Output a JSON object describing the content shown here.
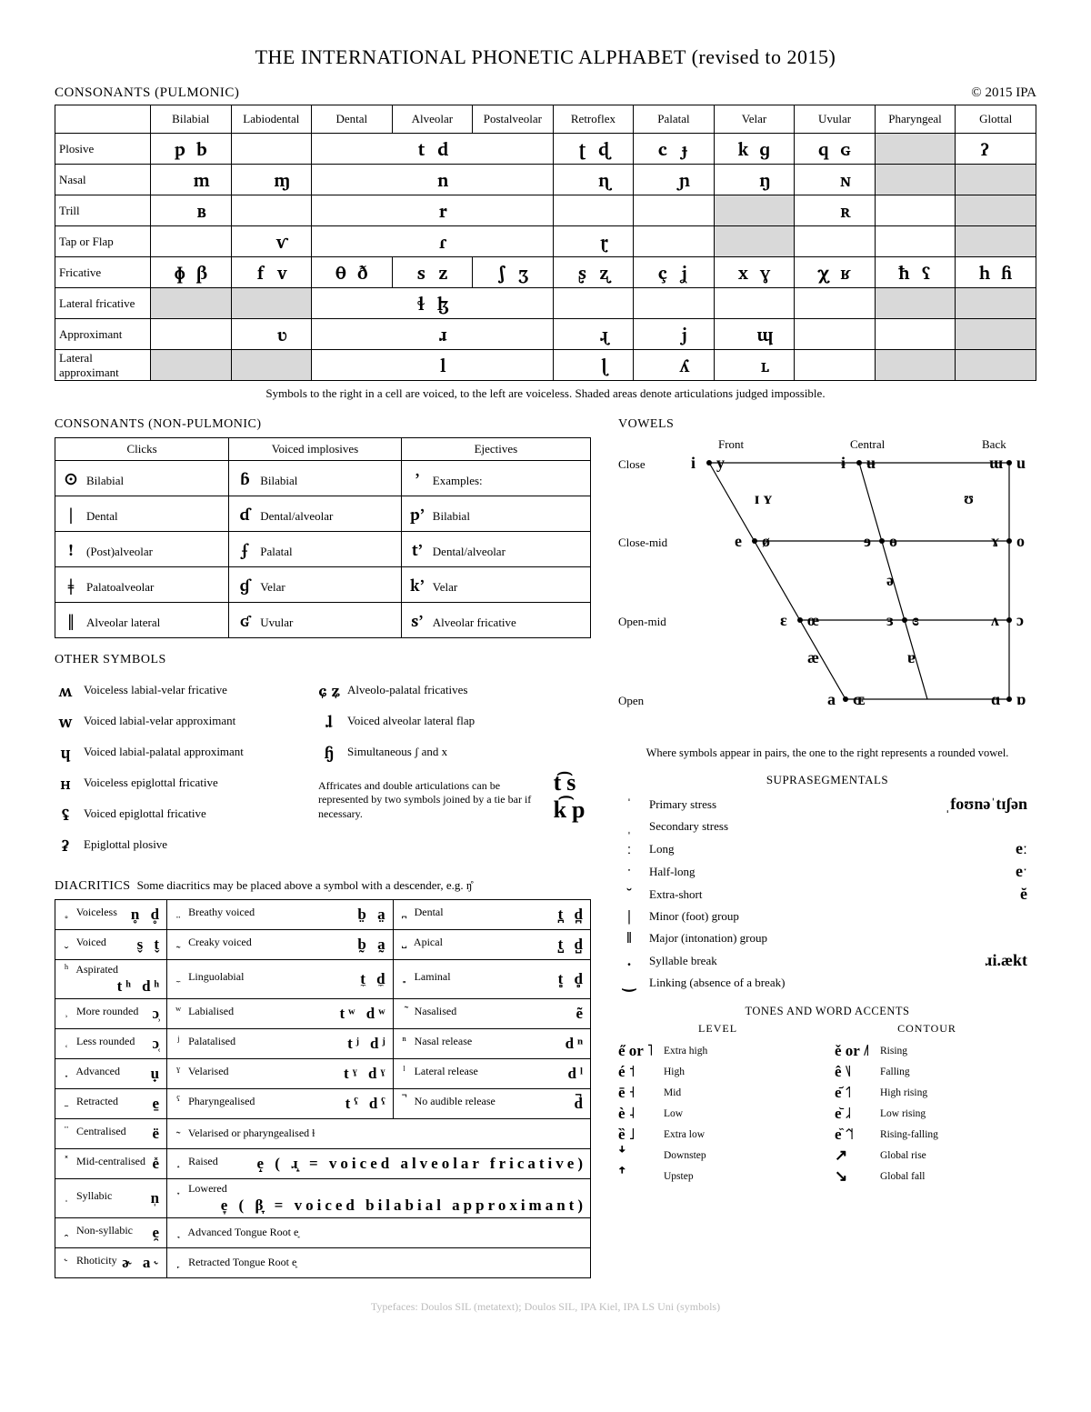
{
  "title": "THE INTERNATIONAL PHONETIC ALPHABET (revised to 2015)",
  "copyright": "© 2015 IPA",
  "footer": "Typefaces: Doulos SIL (metatext); Doulos SIL, IPA Kiel, IPA LS Uni (symbols)",
  "pulmonic": {
    "heading": "CONSONANTS (PULMONIC)",
    "caption": "Symbols to the right in a cell are voiced, to the left are voiceless. Shaded areas denote articulations judged impossible.",
    "columns": [
      "Bilabial",
      "Labiodental",
      "Dental",
      "Alveolar",
      "Postalveolar",
      "Retroflex",
      "Palatal",
      "Velar",
      "Uvular",
      "Pharyngeal",
      "Glottal"
    ],
    "rows": [
      {
        "label": "Plosive",
        "cells": [
          [
            "p",
            "b"
          ],
          [
            "",
            ""
          ],
          [
            "",
            ""
          ],
          [
            "t",
            "d"
          ],
          [
            "",
            ""
          ],
          [
            "ʈ",
            "ɖ"
          ],
          [
            "c",
            "ɟ"
          ],
          [
            "k",
            "ɡ"
          ],
          [
            "q",
            "ɢ"
          ],
          [
            "shadedL",
            ""
          ],
          [
            "ʔ",
            ""
          ]
        ],
        "merge": [
          {
            "from": 2,
            "to": 4,
            "v": [
              "t",
              "d"
            ]
          }
        ],
        "partialShade": [
          {
            "col": 9,
            "side": "right"
          },
          {
            "col": 10,
            "side": "right"
          }
        ]
      },
      {
        "label": "Nasal",
        "cells": [
          [
            "",
            "m"
          ],
          [
            "",
            "ɱ"
          ],
          [
            "",
            ""
          ],
          [
            "",
            "n"
          ],
          [
            "",
            ""
          ],
          [
            "",
            "ɳ"
          ],
          [
            "",
            "ɲ"
          ],
          [
            "",
            "ŋ"
          ],
          [
            "",
            "ɴ"
          ],
          [
            "shaded"
          ],
          [
            "shaded"
          ]
        ],
        "merge": [
          {
            "from": 2,
            "to": 4,
            "v": [
              "",
              "n"
            ]
          }
        ]
      },
      {
        "label": "Trill",
        "cells": [
          [
            "",
            "ʙ"
          ],
          [
            "",
            ""
          ],
          [
            "",
            ""
          ],
          [
            "",
            "r"
          ],
          [
            "",
            ""
          ],
          [
            "",
            ""
          ],
          [
            "",
            ""
          ],
          [
            "shaded"
          ],
          [
            "",
            "ʀ"
          ],
          [
            "",
            ""
          ],
          [
            "shaded"
          ]
        ],
        "merge": [
          {
            "from": 2,
            "to": 4,
            "v": [
              "",
              "r"
            ]
          }
        ]
      },
      {
        "label": "Tap or Flap",
        "cells": [
          [
            "",
            ""
          ],
          [
            "",
            "ⱱ"
          ],
          [
            "",
            ""
          ],
          [
            "",
            "ɾ"
          ],
          [
            "",
            ""
          ],
          [
            "",
            "ɽ"
          ],
          [
            "",
            ""
          ],
          [
            "shaded"
          ],
          [
            "",
            ""
          ],
          [
            "",
            ""
          ],
          [
            "shaded"
          ]
        ],
        "merge": [
          {
            "from": 2,
            "to": 4,
            "v": [
              "",
              "ɾ"
            ]
          }
        ]
      },
      {
        "label": "Fricative",
        "cells": [
          [
            "ɸ",
            "β"
          ],
          [
            "f",
            "v"
          ],
          [
            "θ",
            "ð"
          ],
          [
            "s",
            "z"
          ],
          [
            "ʃ",
            "ʒ"
          ],
          [
            "ʂ",
            "ʐ"
          ],
          [
            "ç",
            "ʝ"
          ],
          [
            "x",
            "ɣ"
          ],
          [
            "χ",
            "ʁ"
          ],
          [
            "ħ",
            "ʕ"
          ],
          [
            "h",
            "ɦ"
          ]
        ]
      },
      {
        "label": "Lateral fricative",
        "cells": [
          [
            "shaded"
          ],
          [
            "shaded"
          ],
          [
            "",
            ""
          ],
          [
            "ɬ",
            "ɮ"
          ],
          [
            "",
            ""
          ],
          [
            "",
            ""
          ],
          [
            "",
            ""
          ],
          [
            "",
            ""
          ],
          [
            "",
            ""
          ],
          [
            "shaded"
          ],
          [
            "shaded"
          ]
        ],
        "merge": [
          {
            "from": 2,
            "to": 4,
            "v": [
              "ɬ",
              "ɮ"
            ]
          }
        ]
      },
      {
        "label": "Approximant",
        "cells": [
          [
            "",
            ""
          ],
          [
            "",
            "ʋ"
          ],
          [
            "",
            ""
          ],
          [
            "",
            "ɹ"
          ],
          [
            "",
            ""
          ],
          [
            "",
            "ɻ"
          ],
          [
            "",
            "j"
          ],
          [
            "",
            "ɰ"
          ],
          [
            "",
            ""
          ],
          [
            "",
            ""
          ],
          [
            "shaded"
          ]
        ],
        "merge": [
          {
            "from": 2,
            "to": 4,
            "v": [
              "",
              "ɹ"
            ]
          }
        ]
      },
      {
        "label": "Lateral approximant",
        "cells": [
          [
            "shaded"
          ],
          [
            "shaded"
          ],
          [
            "",
            ""
          ],
          [
            "",
            "l"
          ],
          [
            "",
            ""
          ],
          [
            "",
            "ɭ"
          ],
          [
            "",
            "ʎ"
          ],
          [
            "",
            "ʟ"
          ],
          [
            "",
            ""
          ],
          [
            "shaded"
          ],
          [
            "shaded"
          ]
        ],
        "merge": [
          {
            "from": 2,
            "to": 4,
            "v": [
              "",
              "l"
            ]
          }
        ]
      }
    ]
  },
  "nonpulmonic": {
    "heading": "CONSONANTS (NON-PULMONIC)",
    "cols": [
      "Clicks",
      "Voiced implosives",
      "Ejectives"
    ],
    "rows": [
      [
        [
          "ʘ",
          "Bilabial"
        ],
        [
          "ɓ",
          "Bilabial"
        ],
        [
          "ʼ",
          "Examples:"
        ]
      ],
      [
        [
          "ǀ",
          "Dental"
        ],
        [
          "ɗ",
          "Dental/alveolar"
        ],
        [
          "pʼ",
          "Bilabial"
        ]
      ],
      [
        [
          "ǃ",
          "(Post)alveolar"
        ],
        [
          "ʄ",
          "Palatal"
        ],
        [
          "tʼ",
          "Dental/alveolar"
        ]
      ],
      [
        [
          "ǂ",
          "Palatoalveolar"
        ],
        [
          "ɠ",
          "Velar"
        ],
        [
          "kʼ",
          "Velar"
        ]
      ],
      [
        [
          "ǁ",
          "Alveolar lateral"
        ],
        [
          "ʛ",
          "Uvular"
        ],
        [
          "sʼ",
          "Alveolar fricative"
        ]
      ]
    ]
  },
  "other": {
    "heading": "OTHER SYMBOLS",
    "left": [
      [
        "ʍ",
        "Voiceless labial-velar fricative"
      ],
      [
        "w",
        "Voiced labial-velar approximant"
      ],
      [
        "ɥ",
        "Voiced labial-palatal approximant"
      ],
      [
        "ʜ",
        "Voiceless epiglottal fricative"
      ],
      [
        "ʢ",
        "Voiced epiglottal fricative"
      ],
      [
        "ʡ",
        "Epiglottal plosive"
      ]
    ],
    "right": [
      [
        "ɕ ʑ",
        "Alveolo-palatal fricatives"
      ],
      [
        "ɺ",
        "Voiced alveolar lateral flap"
      ],
      [
        "ɧ",
        "Simultaneous  ʃ  and  x"
      ]
    ],
    "affricate_note": "Affricates and double articulations can be represented by two symbols joined by a tie bar if necessary.",
    "affricate_examples": "t͡s   k͡p"
  },
  "diacritics": {
    "heading": "DIACRITICS",
    "note": "Some diacritics may be placed above a symbol with a descender, e.g. ŋ̊",
    "rows": [
      [
        [
          "̥",
          "Voiceless",
          "n̥ d̥"
        ],
        [
          "̤",
          "Breathy voiced",
          "b̤ a̤"
        ],
        [
          "̪",
          "Dental",
          "t̪ d̪"
        ]
      ],
      [
        [
          "̬",
          "Voiced",
          "s̬ t̬"
        ],
        [
          "̰",
          "Creaky voiced",
          "b̰ a̰"
        ],
        [
          "̺",
          "Apical",
          "t̺ d̺"
        ]
      ],
      [
        [
          "ʰ",
          "Aspirated",
          "tʰ dʰ"
        ],
        [
          "̼",
          "Linguolabial",
          "t̼ d̼"
        ],
        [
          "̻",
          "Laminal",
          "t̻ d̻"
        ]
      ],
      [
        [
          "̹",
          "More rounded",
          "ɔ̹"
        ],
        [
          "ʷ",
          "Labialised",
          "tʷ dʷ"
        ],
        [
          "̃",
          "Nasalised",
          "ẽ"
        ]
      ],
      [
        [
          "̜",
          "Less rounded",
          "ɔ̜"
        ],
        [
          "ʲ",
          "Palatalised",
          "tʲ dʲ"
        ],
        [
          "ⁿ",
          "Nasal release",
          "dⁿ"
        ]
      ],
      [
        [
          "̟",
          "Advanced",
          "u̟"
        ],
        [
          "ˠ",
          "Velarised",
          "tˠ dˠ"
        ],
        [
          "ˡ",
          "Lateral release",
          "dˡ"
        ]
      ],
      [
        [
          "̠",
          "Retracted",
          "e̠"
        ],
        [
          "ˤ",
          "Pharyngealised",
          "tˤ dˤ"
        ],
        [
          "̚",
          "No audible release",
          "d̚"
        ]
      ],
      [
        [
          "̈",
          "Centralised",
          "ë"
        ],
        [
          "̴",
          "Velarised or pharyngealised          ɫ",
          "span2"
        ]
      ],
      [
        [
          "̽",
          "Mid-centralised",
          "e̽"
        ],
        [
          "̝",
          "Raised",
          "e̝   ( ɹ̝ = voiced alveolar fricative)",
          "span2"
        ]
      ],
      [
        [
          "̩",
          "Syllabic",
          "n̩"
        ],
        [
          "̞",
          "Lowered",
          "e̞   ( β̞ = voiced bilabial approximant)",
          "span2"
        ]
      ],
      [
        [
          "̯",
          "Non-syllabic",
          "e̯"
        ],
        [
          "̘",
          "Advanced Tongue Root   e̘",
          "",
          "span2"
        ]
      ],
      [
        [
          "˞",
          "Rhoticity",
          "ɚ a˞"
        ],
        [
          "̙",
          "Retracted Tongue Root   e̙",
          "",
          "span2"
        ]
      ]
    ]
  },
  "vowels": {
    "heading": "VOWELS",
    "axis_top": [
      "Front",
      "Central",
      "Back"
    ],
    "axis_left": [
      "Close",
      "Close-mid",
      "Open-mid",
      "Open"
    ],
    "note": "Where symbols appear in pairs, the one to the right represents a rounded vowel."
  },
  "supra": {
    "heading": "SUPRASEGMENTALS",
    "rows": [
      [
        "ˈ",
        "Primary stress",
        "ˌfoʊnəˈtɪʃən"
      ],
      [
        "ˌ",
        "Secondary stress",
        ""
      ],
      [
        "ː",
        "Long",
        "eː"
      ],
      [
        "ˑ",
        "Half-long",
        "eˑ"
      ],
      [
        "̆",
        "Extra-short",
        "ĕ"
      ],
      [
        "|",
        "Minor (foot) group",
        ""
      ],
      [
        "‖",
        "Major (intonation) group",
        ""
      ],
      [
        ".",
        "Syllable break",
        "ɹi.ækt"
      ],
      [
        "‿",
        "Linking (absence of a break)",
        ""
      ]
    ]
  },
  "tones": {
    "heading": "TONES AND WORD ACCENTS",
    "subheads": [
      "LEVEL",
      "CONTOUR"
    ],
    "level": [
      [
        "e̋ or ˥",
        "Extra high"
      ],
      [
        "é   ˦",
        "High"
      ],
      [
        "ē   ˧",
        "Mid"
      ],
      [
        "è   ˨",
        "Low"
      ],
      [
        "ȅ   ˩",
        "Extra low"
      ],
      [
        "ꜜ",
        "Downstep"
      ],
      [
        "ꜛ",
        "Upstep"
      ]
    ],
    "contour": [
      [
        "ě or ˩˥",
        "Rising"
      ],
      [
        "ê   ˥˩",
        "Falling"
      ],
      [
        "e᷄  ˦˥",
        "High rising"
      ],
      [
        "e᷅  ˩˨",
        "Low rising"
      ],
      [
        "e᷈  ˦˥˦",
        "Rising-falling"
      ],
      [
        "↗",
        "Global rise"
      ],
      [
        "↘",
        "Global fall"
      ]
    ]
  }
}
